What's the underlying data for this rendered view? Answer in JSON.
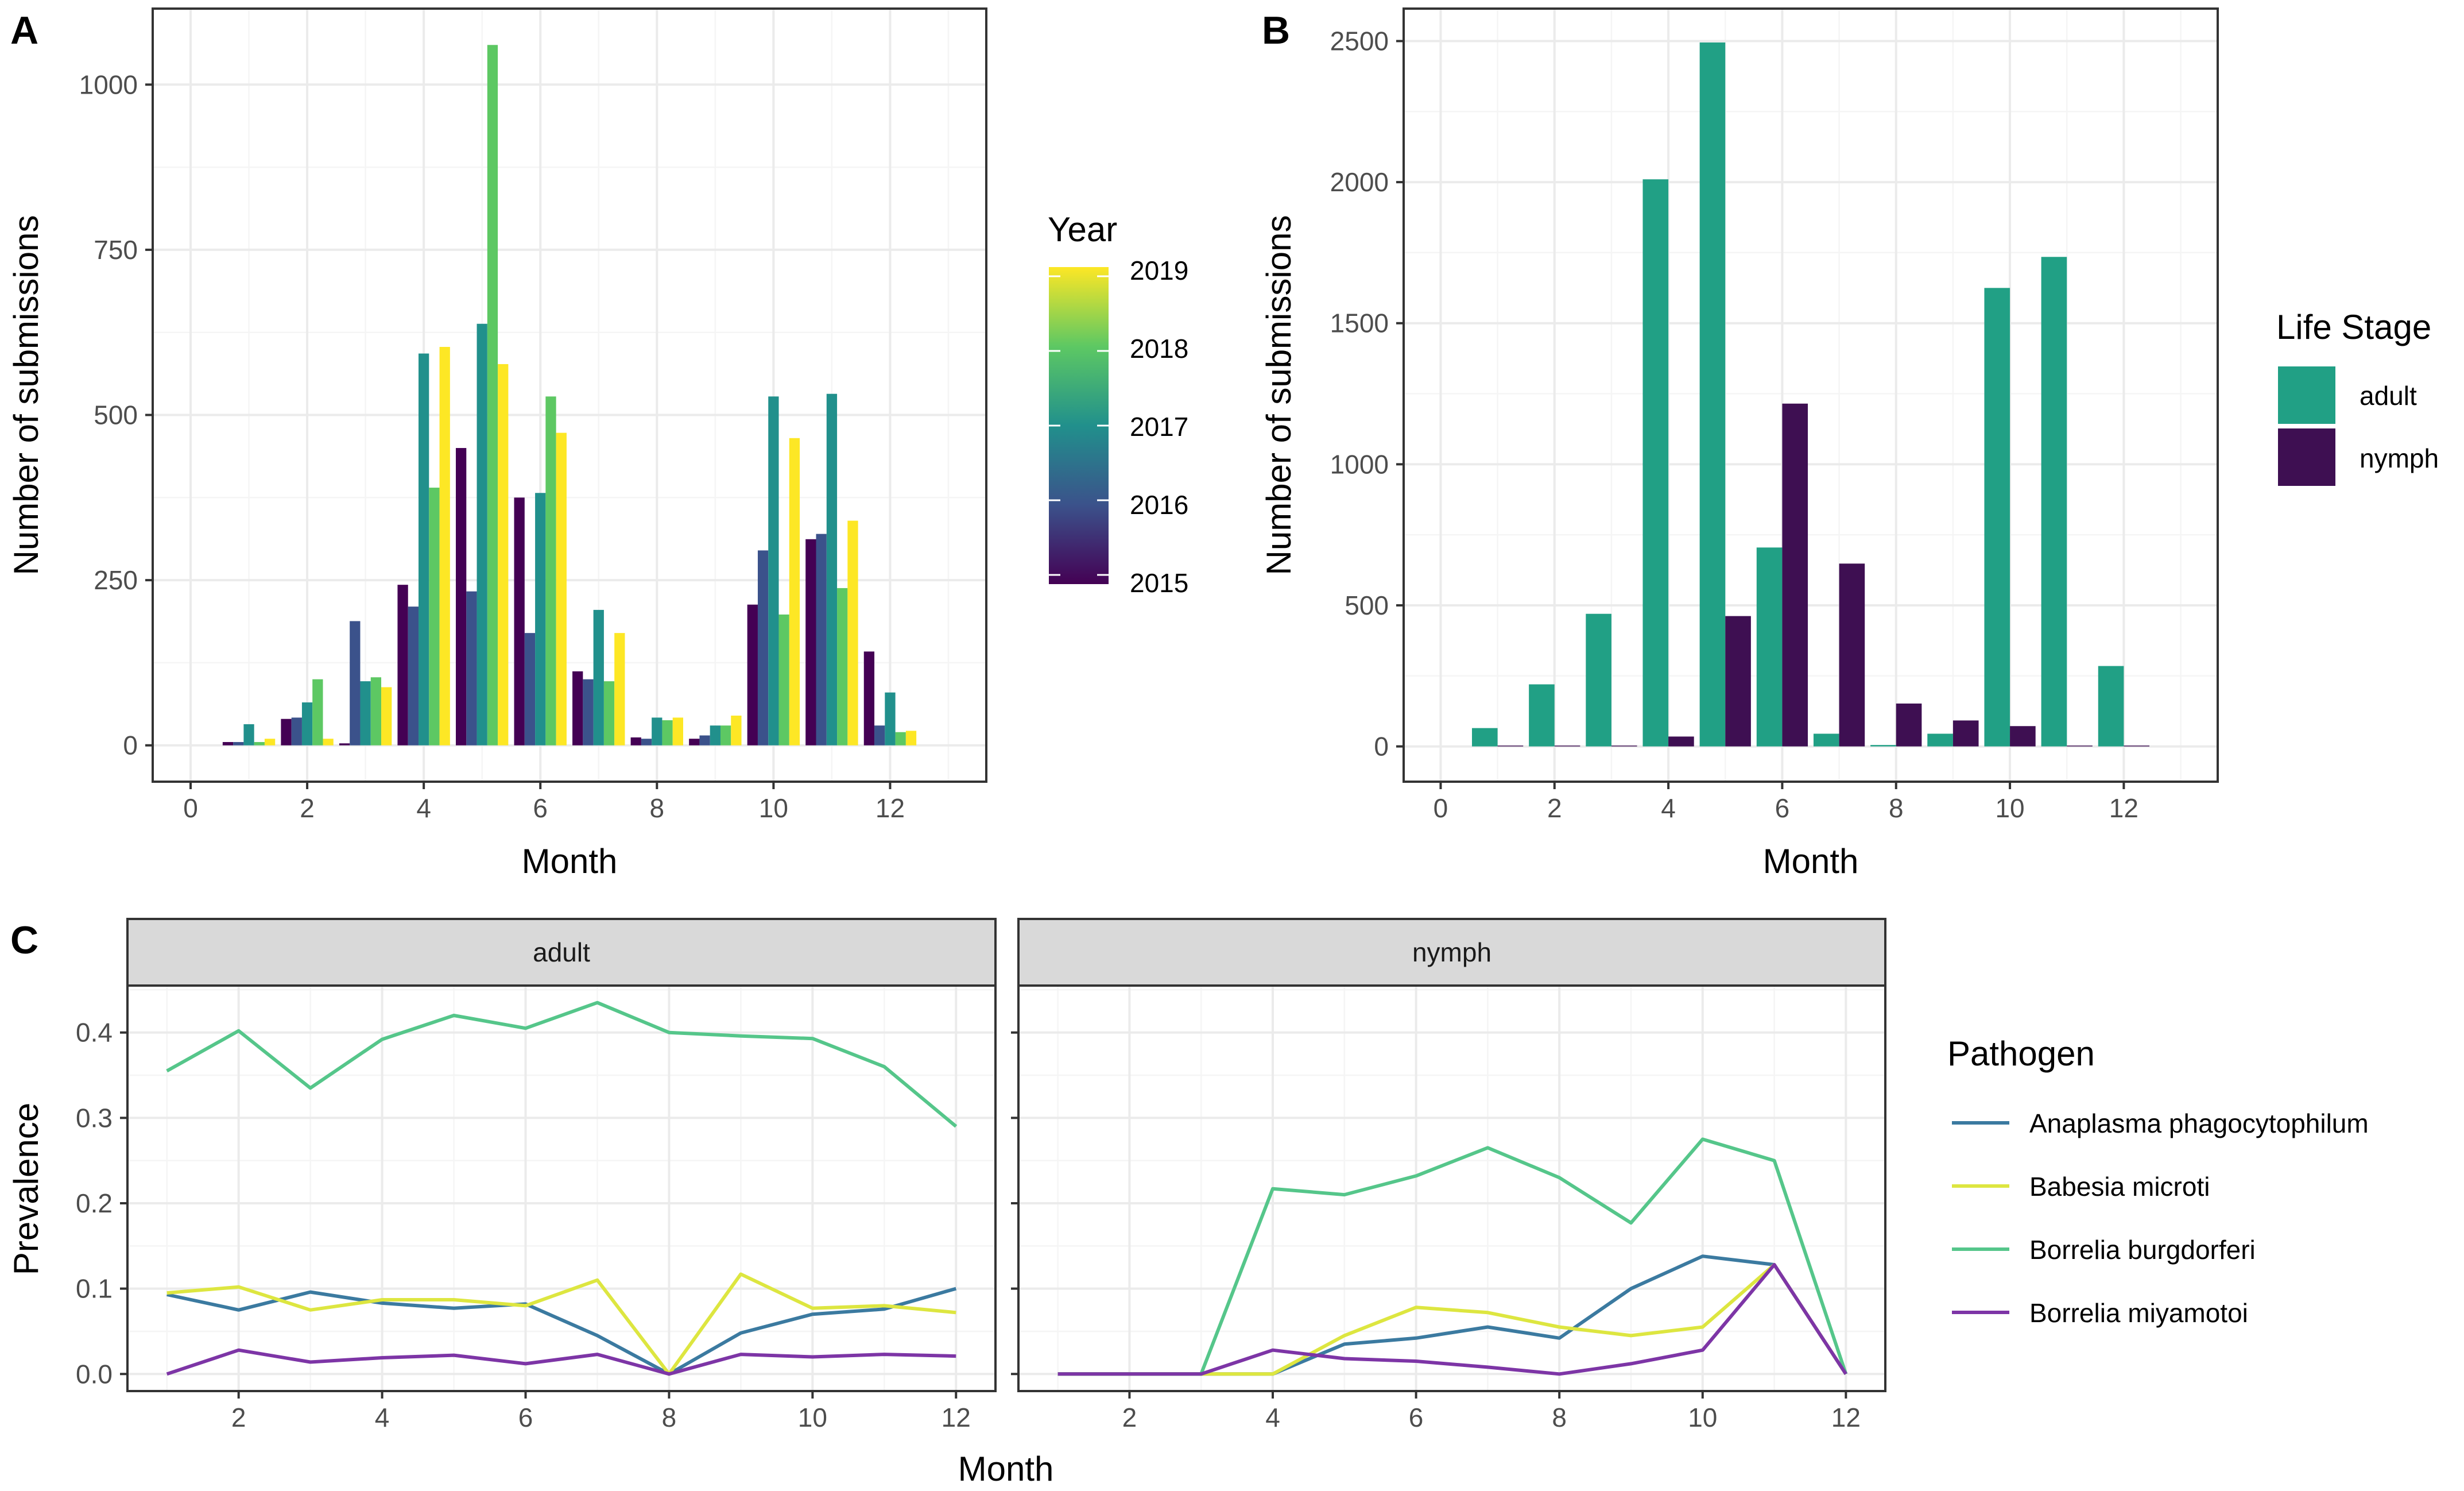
{
  "chart_data": [
    {
      "panel": "A",
      "type": "bar",
      "xlabel": "Month",
      "ylabel": "Number of submissions",
      "xlim": [
        0,
        13
      ],
      "ylim": [
        0,
        1100
      ],
      "xticks": [
        0,
        2,
        4,
        6,
        8,
        10,
        12
      ],
      "yticks": [
        0,
        250,
        500,
        750,
        1000
      ],
      "legend": {
        "title": "Year",
        "type": "colorbar",
        "labels": [
          "2019",
          "2018",
          "2017",
          "2016",
          "2015"
        ],
        "position": "right"
      },
      "series": [
        {
          "name": "2015",
          "color": "#440154",
          "x": [
            1,
            2,
            3,
            4,
            5,
            6,
            7,
            8,
            9,
            10,
            11,
            12
          ],
          "values": [
            5,
            40,
            3,
            243,
            450,
            375,
            112,
            12,
            10,
            213,
            312,
            142
          ]
        },
        {
          "name": "2016",
          "color": "#3b528b",
          "x": [
            1,
            2,
            3,
            4,
            5,
            6,
            7,
            8,
            9,
            10,
            11,
            12
          ],
          "values": [
            5,
            42,
            188,
            210,
            233,
            170,
            100,
            10,
            15,
            295,
            320,
            30
          ]
        },
        {
          "name": "2017",
          "color": "#21908c",
          "x": [
            1,
            2,
            3,
            4,
            5,
            6,
            7,
            8,
            9,
            10,
            11,
            12
          ],
          "values": [
            32,
            65,
            97,
            593,
            638,
            382,
            205,
            42,
            30,
            528,
            532,
            80
          ]
        },
        {
          "name": "2018",
          "color": "#5dc863",
          "x": [
            1,
            2,
            3,
            4,
            5,
            6,
            7,
            8,
            9,
            10,
            11,
            12
          ],
          "values": [
            5,
            100,
            103,
            390,
            1060,
            528,
            97,
            38,
            30,
            198,
            238,
            20
          ]
        },
        {
          "name": "2019",
          "color": "#fde725",
          "x": [
            1,
            2,
            3,
            4,
            5,
            6,
            7,
            8,
            9,
            10,
            11,
            12
          ],
          "values": [
            10,
            10,
            88,
            603,
            577,
            473,
            170,
            42,
            45,
            465,
            340,
            22
          ]
        }
      ]
    },
    {
      "panel": "B",
      "type": "bar",
      "xlabel": "Month",
      "ylabel": "Number of submissions",
      "xlim": [
        0,
        13
      ],
      "ylim": [
        0,
        2600
      ],
      "xticks": [
        0,
        2,
        4,
        6,
        8,
        10,
        12
      ],
      "yticks": [
        0,
        500,
        1000,
        1500,
        2000,
        2500
      ],
      "legend": {
        "title": "Life Stage",
        "labels": [
          "adult",
          "nymph"
        ],
        "position": "right"
      },
      "series": [
        {
          "name": "adult",
          "color": "#21a085",
          "x": [
            1,
            2,
            3,
            4,
            5,
            6,
            7,
            8,
            9,
            10,
            11,
            12
          ],
          "values": [
            65,
            220,
            470,
            2010,
            2495,
            705,
            45,
            5,
            45,
            1625,
            1735,
            285
          ]
        },
        {
          "name": "nymph",
          "color": "#3e0f52",
          "x": [
            1,
            2,
            3,
            4,
            5,
            6,
            7,
            8,
            9,
            10,
            11,
            12
          ],
          "values": [
            3,
            3,
            3,
            35,
            462,
            1215,
            648,
            152,
            92,
            72,
            3,
            3
          ]
        }
      ]
    },
    {
      "panel": "C",
      "type": "line",
      "xlabel": "Month",
      "ylabel": "Prevalence",
      "xlim": [
        0.45,
        12.55
      ],
      "ylim": [
        -0.02,
        0.455
      ],
      "xticks": [
        2,
        4,
        6,
        8,
        10,
        12
      ],
      "yticks": [
        0.0,
        0.1,
        0.2,
        0.3,
        0.4
      ],
      "ytick_labels": [
        "0.0",
        "0.1",
        "0.2",
        "0.3",
        "0.4"
      ],
      "facets": [
        "adult",
        "nymph"
      ],
      "legend": {
        "title": "Pathogen",
        "labels": [
          "Anaplasma phagocytophilum",
          "Babesia microti",
          "Borrelia burgdorferi",
          "Borrelia miyamotoi"
        ],
        "position": "right"
      },
      "series": [
        {
          "name": "Anaplasma phagocytophilum",
          "facet": "adult",
          "color": "#3b7aa0",
          "x": [
            1,
            2,
            3,
            4,
            5,
            6,
            7,
            8,
            9,
            10,
            11,
            12
          ],
          "values": [
            0.093,
            0.075,
            0.096,
            0.083,
            0.077,
            0.082,
            0.045,
            0.0,
            0.048,
            0.07,
            0.076,
            0.1
          ]
        },
        {
          "name": "Babesia microti",
          "facet": "adult",
          "color": "#dde640",
          "x": [
            1,
            2,
            3,
            4,
            5,
            6,
            7,
            8,
            9,
            10,
            11,
            12
          ],
          "values": [
            0.095,
            0.102,
            0.075,
            0.087,
            0.087,
            0.08,
            0.11,
            0.0,
            0.117,
            0.077,
            0.08,
            0.072
          ]
        },
        {
          "name": "Borrelia burgdorferi",
          "facet": "adult",
          "color": "#55c68a",
          "x": [
            1,
            2,
            3,
            4,
            5,
            6,
            7,
            8,
            9,
            10,
            11,
            12
          ],
          "values": [
            0.355,
            0.402,
            0.335,
            0.392,
            0.42,
            0.405,
            0.435,
            0.4,
            0.396,
            0.393,
            0.36,
            0.29
          ]
        },
        {
          "name": "Borrelia miyamotoi",
          "facet": "adult",
          "color": "#7d35a6",
          "x": [
            1,
            2,
            3,
            4,
            5,
            6,
            7,
            8,
            9,
            10,
            11,
            12
          ],
          "values": [
            0.0,
            0.028,
            0.014,
            0.019,
            0.022,
            0.012,
            0.023,
            0.0,
            0.023,
            0.02,
            0.023,
            0.021
          ]
        },
        {
          "name": "Anaplasma phagocytophilum",
          "facet": "nymph",
          "color": "#3b7aa0",
          "x": [
            1,
            2,
            3,
            4,
            5,
            6,
            7,
            8,
            9,
            10,
            11,
            12
          ],
          "values": [
            0.0,
            0.0,
            0.0,
            0.0,
            0.035,
            0.042,
            0.055,
            0.042,
            0.1,
            0.138,
            0.128,
            0.0
          ]
        },
        {
          "name": "Babesia microti",
          "facet": "nymph",
          "color": "#dde640",
          "x": [
            1,
            2,
            3,
            4,
            5,
            6,
            7,
            8,
            9,
            10,
            11,
            12
          ],
          "values": [
            0.0,
            0.0,
            0.0,
            0.0,
            0.045,
            0.078,
            0.072,
            0.055,
            0.045,
            0.055,
            0.128,
            0.0
          ]
        },
        {
          "name": "Borrelia burgdorferi",
          "facet": "nymph",
          "color": "#55c68a",
          "x": [
            1,
            2,
            3,
            4,
            5,
            6,
            7,
            8,
            9,
            10,
            11,
            12
          ],
          "values": [
            0.0,
            0.0,
            0.0,
            0.217,
            0.21,
            0.232,
            0.265,
            0.23,
            0.177,
            0.275,
            0.25,
            0.0
          ]
        },
        {
          "name": "Borrelia miyamotoi",
          "facet": "nymph",
          "color": "#7d35a6",
          "x": [
            1,
            2,
            3,
            4,
            5,
            6,
            7,
            8,
            9,
            10,
            11,
            12
          ],
          "values": [
            0.0,
            0.0,
            0.0,
            0.028,
            0.018,
            0.015,
            0.008,
            0.0,
            0.012,
            0.028,
            0.128,
            0.0
          ]
        }
      ]
    }
  ]
}
